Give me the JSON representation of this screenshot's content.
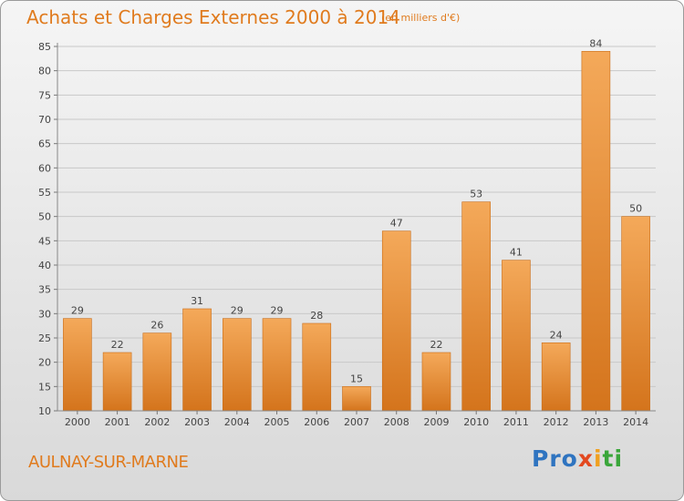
{
  "header": {
    "title": "Achats et Charges Externes 2000 à 2014",
    "subtitle": "(en milliers d'€)"
  },
  "footer": {
    "town": "AULNAY-SUR-MARNE",
    "logo": [
      "Pro",
      "x",
      "i",
      "ti"
    ]
  },
  "colors": {
    "accent": "#e07b1e",
    "bar": "#f0a24c",
    "bar_dark": "#d9791f"
  },
  "chart_data": {
    "type": "bar",
    "title": "Achats et Charges Externes 2000 à 2014",
    "subtitle": "(en milliers d'€)",
    "xlabel": "",
    "ylabel": "",
    "categories": [
      "2000",
      "2001",
      "2002",
      "2003",
      "2004",
      "2005",
      "2006",
      "2007",
      "2008",
      "2009",
      "2010",
      "2011",
      "2012",
      "2013",
      "2014"
    ],
    "values": [
      29,
      22,
      26,
      31,
      29,
      29,
      28,
      15,
      47,
      22,
      53,
      41,
      24,
      84,
      50
    ],
    "ylim": [
      10,
      85
    ],
    "yticks": [
      10,
      15,
      20,
      25,
      30,
      35,
      40,
      45,
      50,
      55,
      60,
      65,
      70,
      75,
      80,
      85
    ],
    "grid": true,
    "legend": "none"
  }
}
